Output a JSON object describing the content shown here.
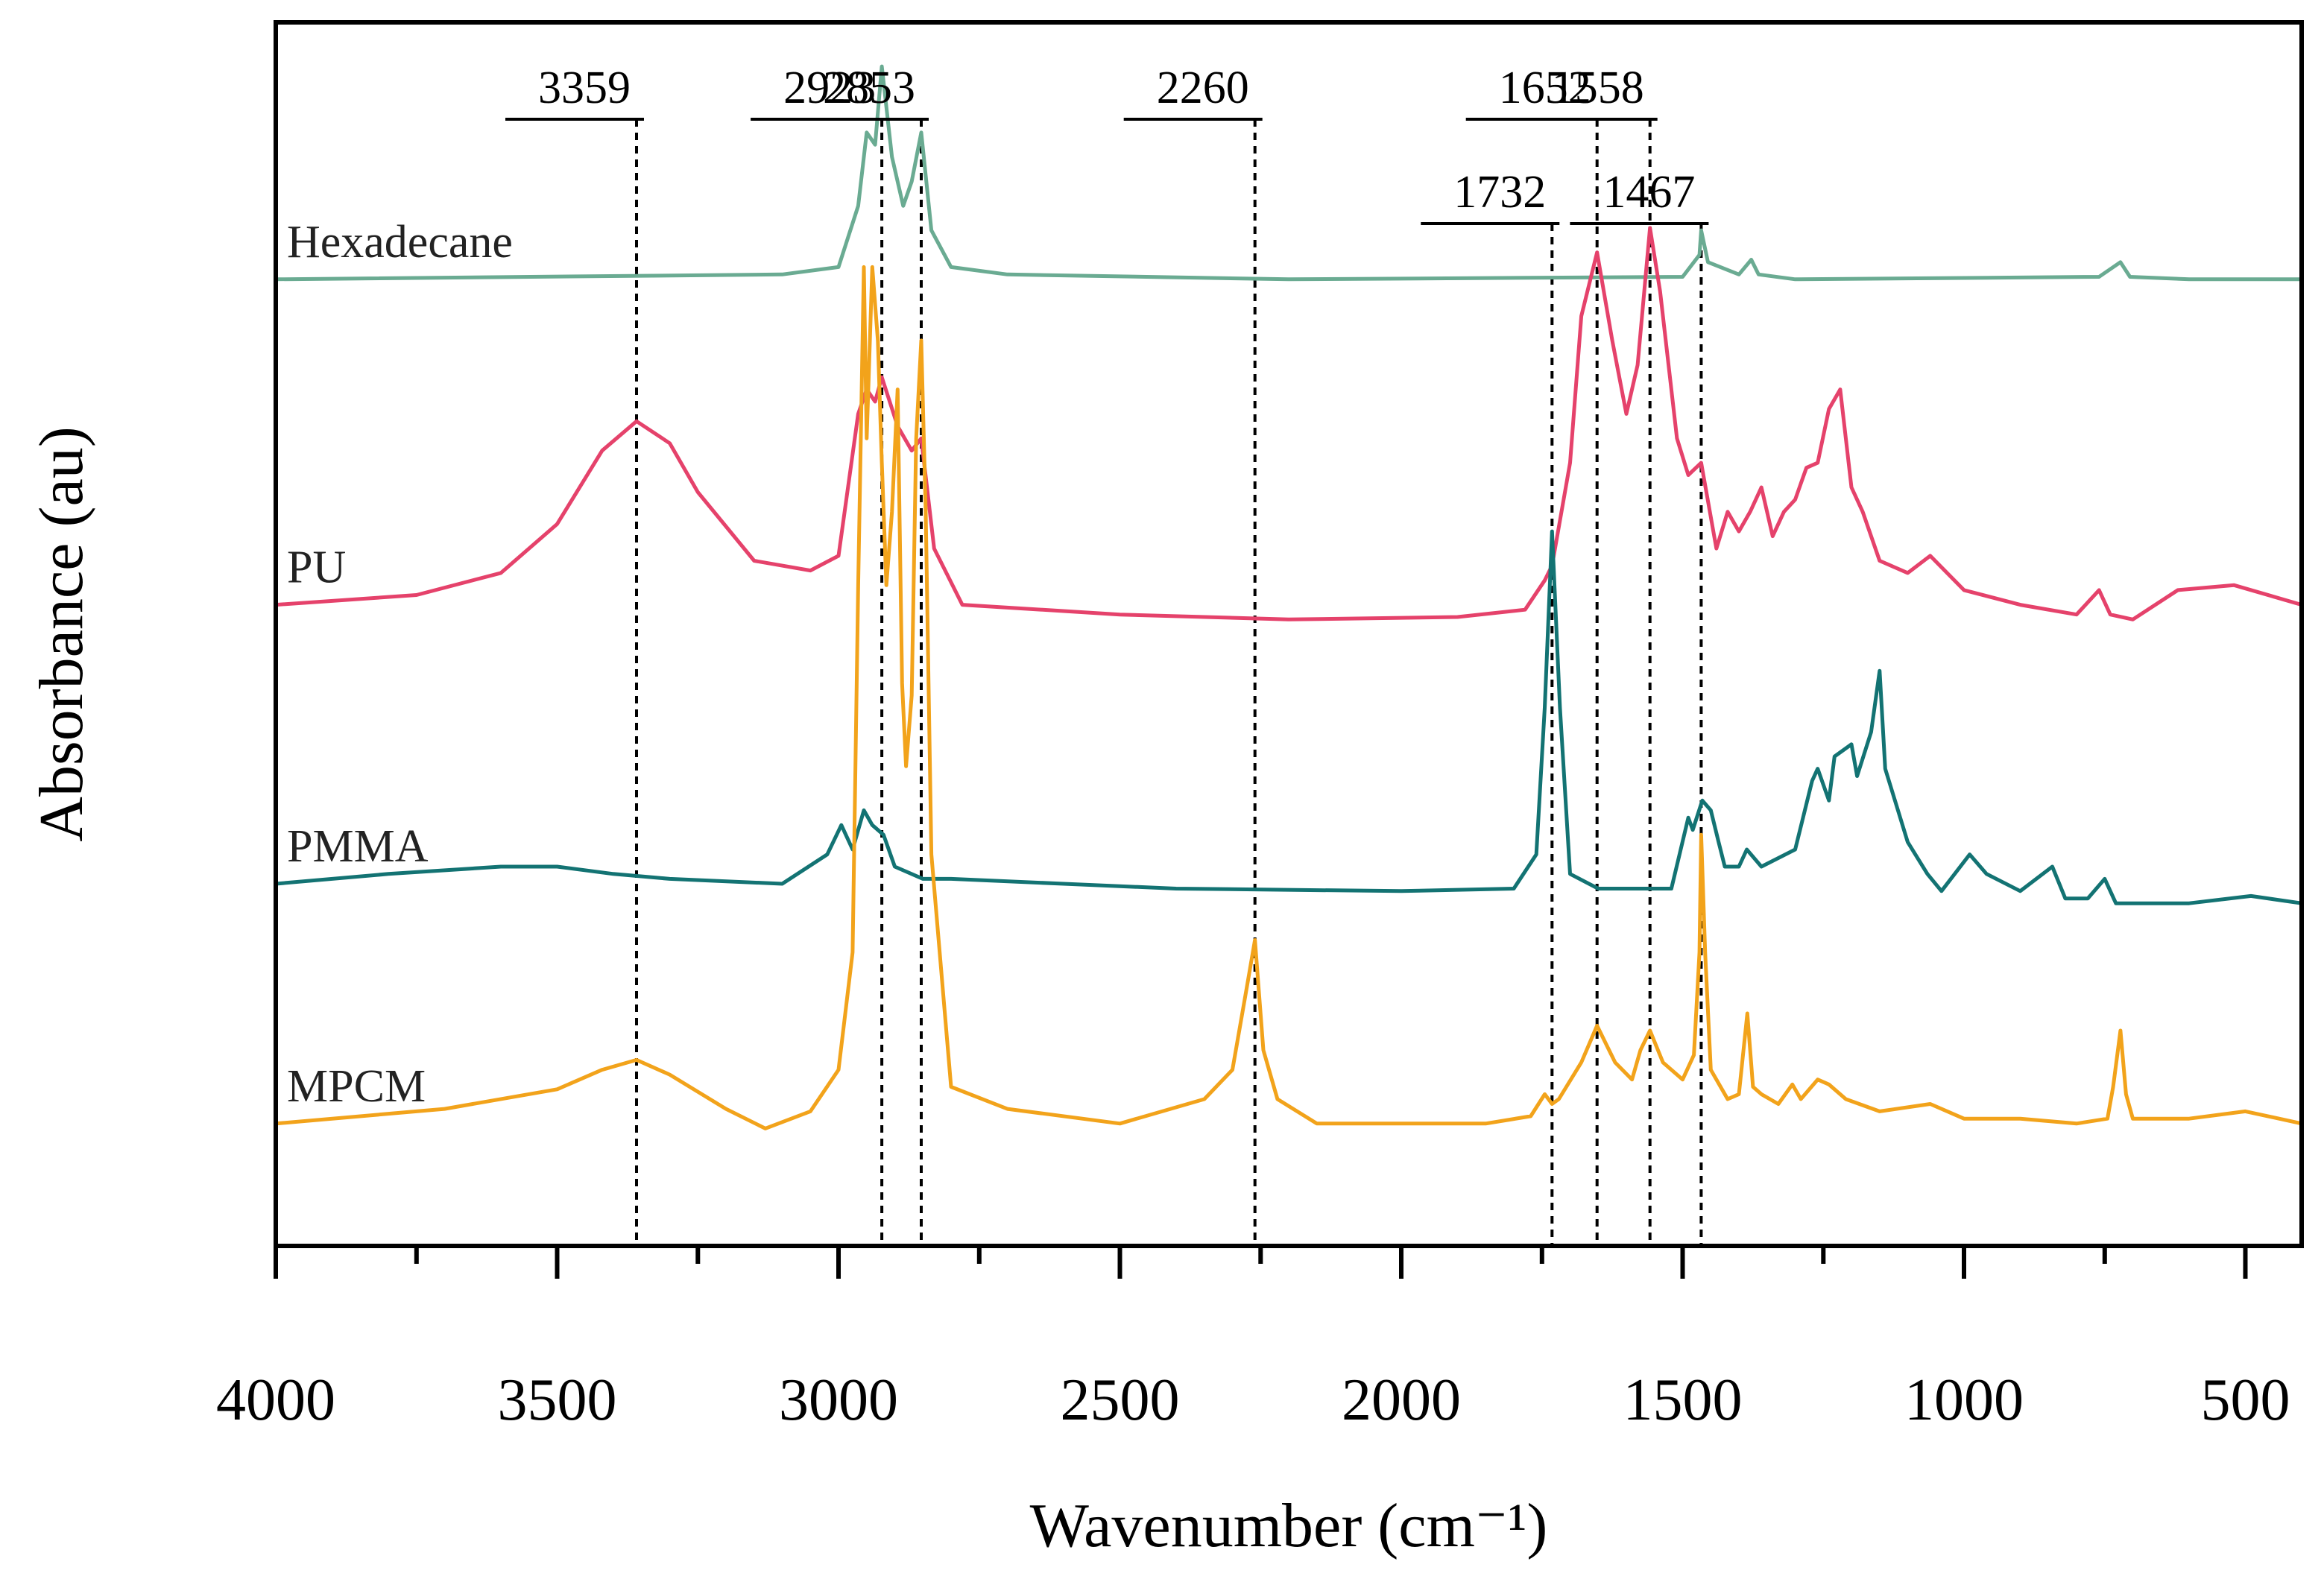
{
  "chart_data": {
    "type": "line",
    "title": "",
    "xlabel": "Wavenumber (cm⁻¹)",
    "ylabel": "Absorbance (au)",
    "xlim": [
      4000,
      400
    ],
    "ylim": [
      0,
      5
    ],
    "x_ticks": [
      4000,
      3500,
      3000,
      2500,
      2000,
      1500,
      1000,
      500
    ],
    "x_tick_labels": [
      "4000",
      "3500",
      "3000",
      "2500",
      "2000",
      "1500",
      "1000",
      "500"
    ],
    "y_ticks": [],
    "grid": false,
    "legend": "none",
    "annotations": [
      {
        "label": "3359",
        "x": 3359
      },
      {
        "label": "2923",
        "x": 2923
      },
      {
        "label": "2853",
        "x": 2853
      },
      {
        "label": "2260",
        "x": 2260
      },
      {
        "label": "1732",
        "x": 1732
      },
      {
        "label": "1652",
        "x": 1652
      },
      {
        "label": "1558",
        "x": 1558
      },
      {
        "label": "1467",
        "x": 1467
      }
    ],
    "series": [
      {
        "name": "Hexadecane",
        "color": "#6aab92",
        "baseline": 3.95,
        "x": [
          4000,
          3100,
          3000,
          2965,
          2950,
          2935,
          2923,
          2905,
          2885,
          2870,
          2853,
          2835,
          2800,
          2700,
          2200,
          1500,
          1470,
          1467,
          1455,
          1400,
          1378,
          1365,
          1300,
          760,
          722,
          705,
          600,
          400
        ],
        "y": [
          3.95,
          3.97,
          4.0,
          4.25,
          4.55,
          4.5,
          4.82,
          4.45,
          4.25,
          4.35,
          4.55,
          4.15,
          4.0,
          3.97,
          3.95,
          3.96,
          4.05,
          4.15,
          4.02,
          3.97,
          4.03,
          3.97,
          3.95,
          3.96,
          4.02,
          3.96,
          3.95,
          3.95
        ]
      },
      {
        "name": "PU",
        "color": "#e5426b",
        "baseline": 2.62,
        "x": [
          4000,
          3750,
          3600,
          3500,
          3420,
          3359,
          3300,
          3250,
          3150,
          3050,
          3000,
          2965,
          2950,
          2935,
          2923,
          2895,
          2870,
          2853,
          2830,
          2780,
          2500,
          2200,
          1900,
          1780,
          1745,
          1732,
          1700,
          1680,
          1652,
          1625,
          1600,
          1580,
          1558,
          1540,
          1510,
          1490,
          1467,
          1440,
          1420,
          1400,
          1380,
          1360,
          1340,
          1320,
          1300,
          1280,
          1260,
          1240,
          1220,
          1200,
          1180,
          1150,
          1100,
          1060,
          1000,
          900,
          800,
          760,
          740,
          700,
          620,
          520,
          400
        ],
        "y": [
          2.62,
          2.66,
          2.75,
          2.95,
          3.25,
          3.37,
          3.28,
          3.08,
          2.8,
          2.76,
          2.82,
          3.4,
          3.5,
          3.45,
          3.55,
          3.35,
          3.25,
          3.3,
          2.85,
          2.62,
          2.58,
          2.56,
          2.57,
          2.6,
          2.72,
          2.78,
          3.2,
          3.8,
          4.06,
          3.7,
          3.4,
          3.6,
          4.16,
          3.9,
          3.3,
          3.15,
          3.2,
          2.85,
          3.0,
          2.92,
          3.0,
          3.1,
          2.9,
          3.0,
          3.05,
          3.18,
          3.2,
          3.42,
          3.5,
          3.1,
          3.0,
          2.8,
          2.75,
          2.82,
          2.68,
          2.62,
          2.58,
          2.68,
          2.58,
          2.56,
          2.68,
          2.7,
          2.62
        ]
      },
      {
        "name": "PMMA",
        "color": "#137373",
        "baseline": 1.48,
        "x": [
          4000,
          3800,
          3600,
          3500,
          3400,
          3300,
          3100,
          3020,
          2995,
          2975,
          2955,
          2940,
          2920,
          2900,
          2850,
          2800,
          2600,
          2400,
          2000,
          1800,
          1760,
          1745,
          1732,
          1718,
          1700,
          1650,
          1520,
          1490,
          1482,
          1465,
          1450,
          1436,
          1425,
          1400,
          1386,
          1360,
          1300,
          1270,
          1260,
          1240,
          1230,
          1200,
          1190,
          1165,
          1150,
          1140,
          1100,
          1065,
          1040,
          990,
          960,
          900,
          843,
          820,
          780,
          750,
          730,
          700,
          600,
          490,
          400
        ],
        "y": [
          1.48,
          1.52,
          1.55,
          1.55,
          1.52,
          1.5,
          1.48,
          1.6,
          1.72,
          1.62,
          1.78,
          1.72,
          1.68,
          1.55,
          1.5,
          1.5,
          1.48,
          1.46,
          1.45,
          1.46,
          1.6,
          2.2,
          2.92,
          2.2,
          1.52,
          1.46,
          1.46,
          1.75,
          1.7,
          1.82,
          1.78,
          1.65,
          1.55,
          1.55,
          1.62,
          1.55,
          1.62,
          1.9,
          1.95,
          1.82,
          2.0,
          2.05,
          1.92,
          2.1,
          2.35,
          1.95,
          1.65,
          1.52,
          1.45,
          1.6,
          1.52,
          1.45,
          1.55,
          1.42,
          1.42,
          1.5,
          1.4,
          1.4,
          1.4,
          1.43,
          1.4
        ]
      },
      {
        "name": "MPCM",
        "color": "#f2a31b",
        "baseline": 0.5,
        "x": [
          4000,
          3700,
          3500,
          3420,
          3359,
          3300,
          3200,
          3130,
          3050,
          3000,
          2975,
          2965,
          2955,
          2950,
          2940,
          2930,
          2923,
          2915,
          2905,
          2895,
          2887,
          2880,
          2870,
          2862,
          2853,
          2845,
          2835,
          2800,
          2700,
          2500,
          2350,
          2300,
          2275,
          2260,
          2245,
          2220,
          2150,
          2000,
          1850,
          1770,
          1745,
          1732,
          1720,
          1680,
          1652,
          1620,
          1590,
          1575,
          1558,
          1535,
          1500,
          1480,
          1470,
          1467,
          1460,
          1450,
          1420,
          1400,
          1385,
          1375,
          1360,
          1330,
          1305,
          1290,
          1260,
          1240,
          1210,
          1150,
          1060,
          1000,
          900,
          800,
          745,
          735,
          722,
          712,
          700,
          600,
          500,
          400
        ],
        "y": [
          0.5,
          0.56,
          0.64,
          0.72,
          0.76,
          0.7,
          0.56,
          0.48,
          0.55,
          0.72,
          1.2,
          2.7,
          4.0,
          3.3,
          4.0,
          3.7,
          3.2,
          2.7,
          3.0,
          3.5,
          2.3,
          1.96,
          2.25,
          3.3,
          3.7,
          3.0,
          1.6,
          0.65,
          0.56,
          0.5,
          0.6,
          0.72,
          1.05,
          1.25,
          0.8,
          0.6,
          0.5,
          0.5,
          0.5,
          0.53,
          0.62,
          0.58,
          0.6,
          0.75,
          0.9,
          0.75,
          0.68,
          0.8,
          0.88,
          0.75,
          0.68,
          0.78,
          1.2,
          1.68,
          1.2,
          0.72,
          0.6,
          0.62,
          0.95,
          0.65,
          0.62,
          0.58,
          0.66,
          0.6,
          0.68,
          0.66,
          0.6,
          0.55,
          0.58,
          0.52,
          0.52,
          0.5,
          0.52,
          0.65,
          0.88,
          0.62,
          0.52,
          0.52,
          0.55,
          0.5
        ]
      }
    ]
  }
}
